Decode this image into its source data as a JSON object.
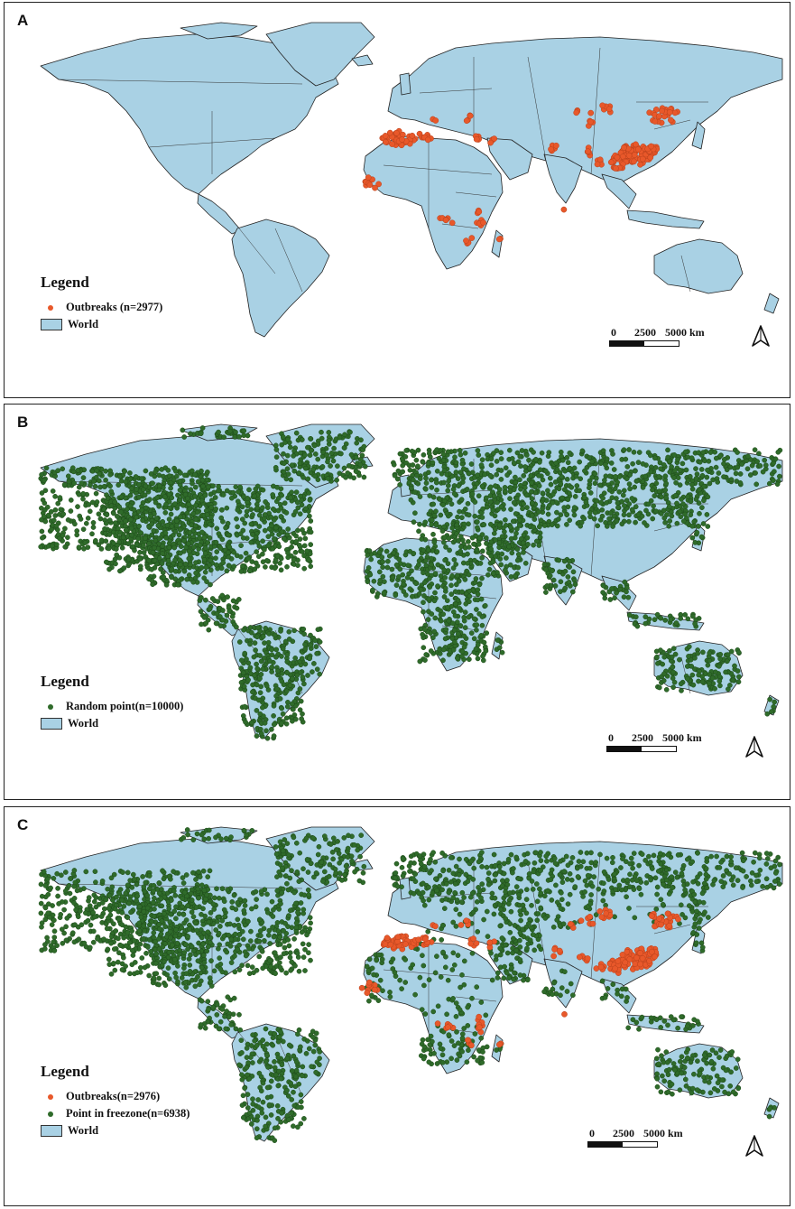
{
  "panels": [
    {
      "letter": "A",
      "legend": {
        "title": "Legend",
        "items": [
          {
            "label": "Outbreaks (n=2977)",
            "symbol": "dot",
            "color": "#e8582a"
          },
          {
            "label": "World",
            "symbol": "box",
            "color": "#a9d1e4"
          }
        ]
      },
      "layers": {
        "green": false,
        "orange": true
      }
    },
    {
      "letter": "B",
      "legend": {
        "title": "Legend",
        "items": [
          {
            "label": "Random point(n=10000)",
            "symbol": "dot",
            "color": "#2f6b2a"
          },
          {
            "label": "World",
            "symbol": "box",
            "color": "#a9d1e4"
          }
        ]
      },
      "layers": {
        "green": true,
        "orange": false
      }
    },
    {
      "letter": "C",
      "legend": {
        "title": "Legend",
        "items": [
          {
            "label": "Outbreaks(n=2976)",
            "symbol": "dot",
            "color": "#e8582a"
          },
          {
            "label": "Point in freezone(n=6938)",
            "symbol": "dot",
            "color": "#2f6b2a"
          },
          {
            "label": "World",
            "symbol": "box",
            "color": "#a9d1e4"
          }
        ]
      },
      "layers": {
        "green": true,
        "orange": true
      }
    }
  ],
  "scalebar": {
    "labels": [
      "0",
      "2500",
      "5000 km"
    ]
  },
  "north_arrow_icon": "north-arrow-icon",
  "colors": {
    "land": "#a9d1e4",
    "outbreak": "#e8582a",
    "random_point": "#2f6b2a",
    "border": "#222222"
  }
}
